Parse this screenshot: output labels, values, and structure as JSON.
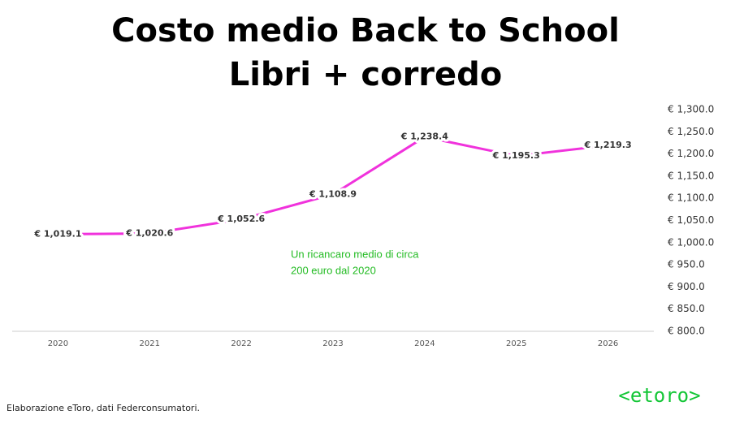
{
  "chart_data": {
    "type": "line",
    "title": "Costo medio Back to School",
    "subtitle": "Libri + corredo",
    "categories": [
      "2020",
      "2021",
      "2022",
      "2023",
      "2024",
      "2025",
      "2026"
    ],
    "values": [
      1019.1,
      1020.6,
      1052.6,
      1108.9,
      1238.4,
      1195.3,
      1219.3
    ],
    "value_labels": [
      "€ 1,019.1",
      "€ 1,020.6",
      "€ 1,052.6",
      "€ 1,108.9",
      "€ 1,238.4",
      "€ 1,195.3",
      "€ 1,219.3"
    ],
    "color": "#f032dc",
    "ylim": [
      800,
      1300
    ],
    "yticks": [
      {
        "value": 800,
        "label": "€ 800.0"
      },
      {
        "value": 850,
        "label": "€ 850.0"
      },
      {
        "value": 900,
        "label": "€ 900.0"
      },
      {
        "value": 950,
        "label": "€ 950.0"
      },
      {
        "value": 1000,
        "label": "€ 1,000.0"
      },
      {
        "value": 1050,
        "label": "€ 1,050.0"
      },
      {
        "value": 1100,
        "label": "€ 1,100.0"
      },
      {
        "value": 1150,
        "label": "€ 1,150.0"
      },
      {
        "value": 1200,
        "label": "€ 1,200.0"
      },
      {
        "value": 1250,
        "label": "€ 1,250.0"
      },
      {
        "value": 1300,
        "label": "€ 1,300.0"
      }
    ],
    "grid": false,
    "annotation": [
      "Un ricancaro medio di circa",
      "200 euro dal 2020"
    ],
    "annotation_color": "#22bb22"
  },
  "footer": "Elaborazione eToro, dati Federconsumatori.",
  "logo": "<etoro>"
}
